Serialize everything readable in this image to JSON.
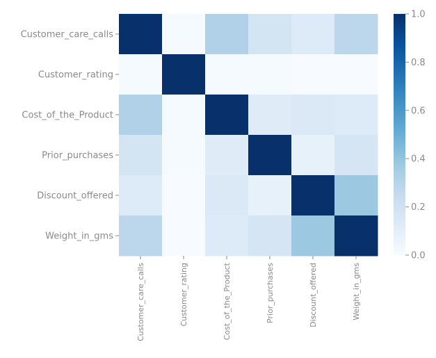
{
  "chart_data": {
    "type": "heatmap",
    "title": "",
    "xlabel": "",
    "ylabel": "",
    "rows": [
      "Customer_care_calls",
      "Customer_rating",
      "Cost_of_the_Product",
      "Prior_purchases",
      "Discount_offered",
      "Weight_in_gms"
    ],
    "columns": [
      "Customer_care_calls",
      "Customer_rating",
      "Cost_of_the_Product",
      "Prior_purchases",
      "Discount_offered",
      "Weight_in_gms"
    ],
    "values": [
      [
        1.0,
        0.01,
        0.32,
        0.18,
        0.13,
        0.28
      ],
      [
        0.01,
        1.0,
        0.01,
        0.01,
        0.0,
        0.0
      ],
      [
        0.32,
        0.01,
        1.0,
        0.12,
        0.14,
        0.13
      ],
      [
        0.18,
        0.01,
        0.12,
        1.0,
        0.08,
        0.17
      ],
      [
        0.13,
        0.0,
        0.14,
        0.08,
        1.0,
        0.38
      ],
      [
        0.28,
        0.0,
        0.13,
        0.17,
        0.38,
        1.0
      ]
    ],
    "colorbar": {
      "min": 0.0,
      "max": 1.0,
      "ticks": [
        "0.0",
        "0.2",
        "0.4",
        "0.6",
        "0.8",
        "1.0"
      ],
      "colormap": "Blues",
      "low_color": "#f7fbff",
      "high_color": "#08306b"
    },
    "grid": false,
    "legend": "colorbar-right"
  }
}
